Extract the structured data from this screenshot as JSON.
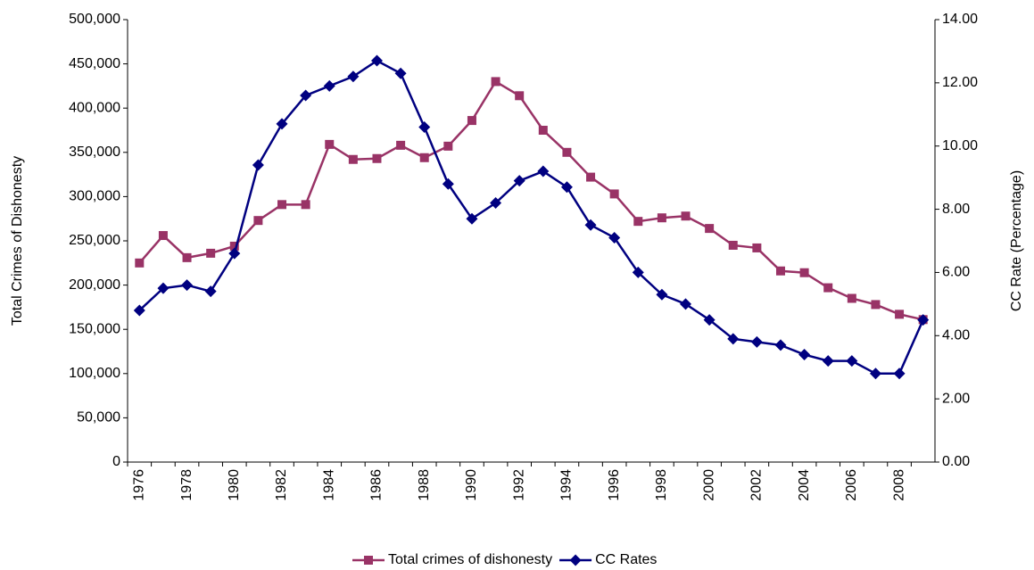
{
  "chart_data": {
    "type": "line",
    "y_label": "Total Crimes of Dishonesty",
    "y2_label": "CC Rate (Percentage)",
    "categories": [
      "1976",
      null,
      "1978",
      null,
      "1980",
      null,
      "1982",
      null,
      "1984",
      null,
      "1986",
      null,
      "1988",
      null,
      "1990",
      null,
      "1992",
      null,
      "1994",
      null,
      "1996",
      null,
      "1998",
      null,
      "2000",
      null,
      "2002",
      null,
      "2004",
      null,
      "2006",
      null,
      "2008",
      null
    ],
    "series": [
      {
        "name": "Total crimes of dishonesty",
        "color": "#993366",
        "marker": "square",
        "values": [
          225000,
          256000,
          231000,
          236000,
          244000,
          273000,
          291000,
          291000,
          359000,
          342000,
          343000,
          358000,
          344000,
          357000,
          386000,
          430000,
          414000,
          375000,
          350000,
          322000,
          303000,
          272000,
          276000,
          278000,
          264000,
          245000,
          242000,
          216000,
          214000,
          197000,
          185000,
          178000,
          167000,
          161000
        ]
      },
      {
        "name": "CC Rates",
        "color": "#000080",
        "marker": "diamond",
        "axis": "y2",
        "values": [
          4.8,
          5.5,
          5.6,
          5.4,
          6.6,
          9.4,
          10.7,
          11.6,
          11.9,
          12.2,
          12.7,
          12.3,
          10.6,
          8.8,
          7.7,
          8.2,
          8.9,
          9.2,
          8.7,
          7.5,
          7.1,
          6.0,
          5.3,
          5.0,
          4.5,
          3.9,
          3.8,
          3.7,
          3.4,
          3.2,
          3.2,
          2.8,
          2.8,
          4.5
        ]
      }
    ],
    "ylim": [
      0,
      500000
    ],
    "yticks": [
      0,
      {
        "value": 50000,
        "label": "50,000"
      },
      {
        "value": 100000,
        "label": "100,000"
      },
      {
        "value": 150000,
        "label": "150,000"
      },
      {
        "value": 200000,
        "label": "200,000"
      },
      {
        "value": 250000,
        "label": "250,000"
      },
      {
        "value": 300000,
        "label": "300,000"
      },
      {
        "value": 350000,
        "label": "350,000"
      },
      {
        "value": 400000,
        "label": "400,000"
      },
      {
        "value": 450000,
        "label": "450,000"
      },
      {
        "value": 500000,
        "label": "500,000"
      }
    ],
    "y2lim": [
      0,
      14
    ],
    "y2ticks": [
      {
        "value": 0,
        "label": "0.00"
      },
      {
        "value": 2,
        "label": "2.00"
      },
      {
        "value": 4,
        "label": "4.00"
      },
      {
        "value": 6,
        "label": "6.00"
      },
      {
        "value": 8,
        "label": "8.00"
      },
      {
        "value": 10,
        "label": "10.00"
      },
      {
        "value": 12,
        "label": "12.00"
      },
      {
        "value": 14,
        "label": "14.00"
      }
    ],
    "legend": "bottom"
  }
}
